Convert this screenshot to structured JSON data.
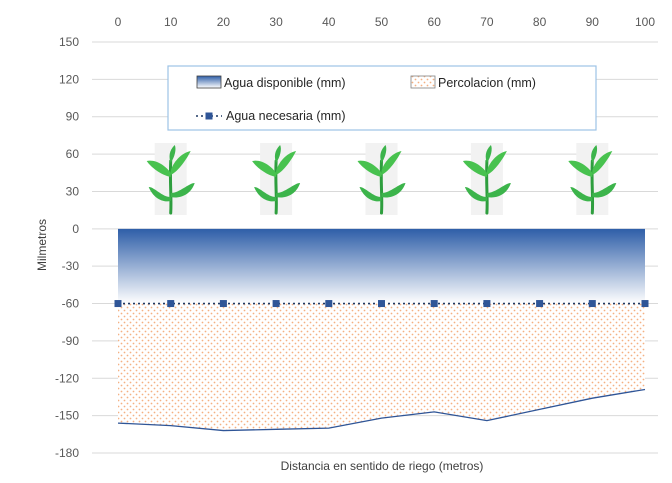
{
  "chart_data": {
    "type": "area",
    "xlabel": "Distancia en sentido de riego (metros)",
    "ylabel": "Milmetros",
    "x": [
      0,
      10,
      20,
      30,
      40,
      50,
      60,
      70,
      80,
      90,
      100
    ],
    "xlim": [
      0,
      100
    ],
    "ylim": [
      -180,
      150
    ],
    "yticks": [
      150,
      120,
      90,
      60,
      30,
      0,
      -30,
      -60,
      -90,
      -120,
      -150,
      -180
    ],
    "grid": true,
    "x_axis_position": "top",
    "legend_position": "top-center",
    "series": [
      {
        "name": "Agua disponible (mm)",
        "kind": "area-gradient",
        "values": [
          -60,
          -60,
          -60,
          -60,
          -60,
          -60,
          -60,
          -60,
          -60,
          -60,
          -60
        ],
        "color_top": "#2e5ea8",
        "color_bottom": "#ffffff"
      },
      {
        "name": "Percolacion (mm)",
        "kind": "area-pattern",
        "values": [
          -156,
          -158,
          -162,
          -161,
          -160,
          -152,
          -147,
          -154,
          -145,
          -136,
          -129
        ],
        "color": "#f4b183",
        "line_color": "#2f5597"
      },
      {
        "name": "Agua necesaria (mm)",
        "kind": "line-markers",
        "values": [
          -60,
          -60,
          -60,
          -60,
          -60,
          -60,
          -60,
          -60,
          -60,
          -60,
          -60
        ],
        "color": "#1f3864"
      }
    ],
    "plant_icons_x": [
      10,
      30,
      50,
      70,
      90
    ],
    "plant_icon_name": "plant-icon"
  }
}
